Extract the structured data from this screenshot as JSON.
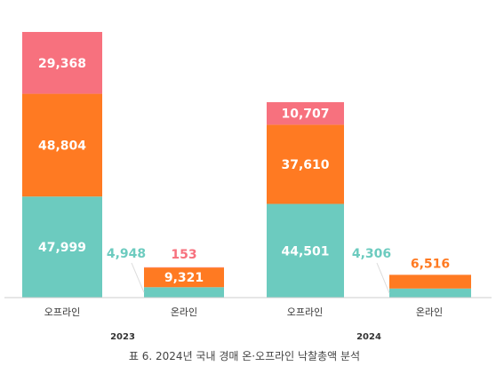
{
  "chart_data": {
    "type": "bar",
    "stacked": true,
    "caption": "표 6. 2024년 국내 경매 온·오프라인 낙찰총액 분석",
    "groups": [
      "2023",
      "2024"
    ],
    "categories": [
      "오프라인",
      "온라인"
    ],
    "colors": {
      "teal": "#6ccbbf",
      "orange": "#ff7a22",
      "pink": "#f7717e",
      "axis": "#cccccc"
    },
    "bars": [
      {
        "group": "2023",
        "category": "오프라인",
        "segments": [
          47999,
          48804,
          29368
        ],
        "labels": [
          "47,999",
          "48,804",
          "29,368"
        ]
      },
      {
        "group": "2023",
        "category": "온라인",
        "segments": [
          4948,
          9321,
          153
        ],
        "labels": [
          "4,948",
          "9,321",
          "153"
        ]
      },
      {
        "group": "2024",
        "category": "오프라인",
        "segments": [
          44501,
          37610,
          10707
        ],
        "labels": [
          "44,501",
          "37,610",
          "10,707"
        ]
      },
      {
        "group": "2024",
        "category": "온라인",
        "segments": [
          4306,
          6516
        ],
        "labels": [
          "4,306",
          "6,516"
        ]
      }
    ]
  }
}
